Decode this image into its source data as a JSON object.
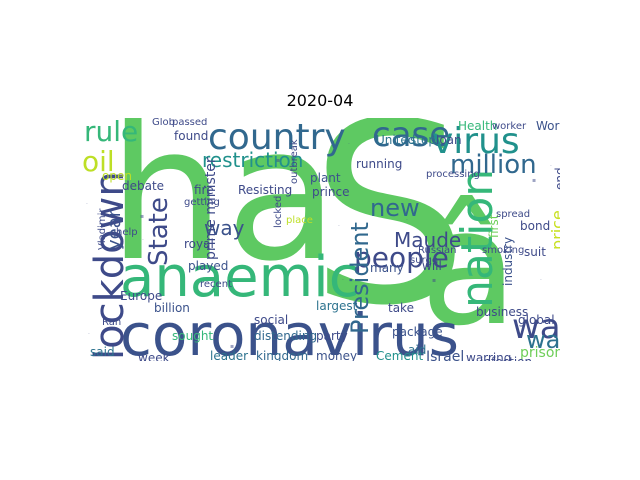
{
  "title": "2020-04",
  "words": [
    {
      "t": "ha",
      "c": "#5ec962"
    },
    {
      "t": "S",
      "c": "#5ec962"
    },
    {
      "t": "â",
      "c": "#5ec962"
    },
    {
      "t": "coronavirus",
      "c": "#3b528b"
    },
    {
      "t": "anaemic",
      "c": "#35b779"
    },
    {
      "t": "country",
      "c": "#31688e"
    },
    {
      "t": "lockdown",
      "c": "#3e4a89"
    },
    {
      "t": "case",
      "c": "#31688e"
    },
    {
      "t": "virus",
      "c": "#21918c"
    },
    {
      "t": "nation",
      "c": "#35b779"
    },
    {
      "t": "oil",
      "c": "#bddf26"
    },
    {
      "t": "wa",
      "c": "#3e4a89"
    },
    {
      "t": "rule",
      "c": "#35b779"
    },
    {
      "t": "million",
      "c": "#31688e"
    },
    {
      "t": "people",
      "c": "#3e4a89"
    },
    {
      "t": "new",
      "c": "#31688e"
    },
    {
      "t": "President",
      "c": "#31688e"
    },
    {
      "t": "State",
      "c": "#3e4a89"
    },
    {
      "t": "restriction",
      "c": "#21918c"
    },
    {
      "t": "way",
      "c": "#3b528b"
    },
    {
      "t": "Maude",
      "c": "#3e4a89"
    },
    {
      "t": "year",
      "c": "#3b528b"
    },
    {
      "t": "war",
      "c": "#2c728e"
    },
    {
      "t": "prime minister",
      "c": "#3e4a89"
    },
    {
      "t": "price",
      "c": "#c8e020"
    },
    {
      "t": "first",
      "c": "#6ece58"
    },
    {
      "t": "end",
      "c": "#3e4a89"
    },
    {
      "t": "prison",
      "c": "#6ece58"
    },
    {
      "t": "Israel",
      "c": "#3b528b"
    },
    {
      "t": "warring",
      "c": "#3e4a89"
    },
    {
      "t": "leader",
      "c": "#2c728e"
    },
    {
      "t": "kingdom",
      "c": "#31688e"
    },
    {
      "t": "money",
      "c": "#3b528b"
    },
    {
      "t": "Cement",
      "c": "#21918c"
    },
    {
      "t": "week",
      "c": "#3e4a89"
    },
    {
      "t": "said",
      "c": "#2c728e"
    },
    {
      "t": "sought",
      "c": "#35b779"
    },
    {
      "t": "billion",
      "c": "#3b528b"
    },
    {
      "t": "social",
      "c": "#3e4a89"
    },
    {
      "t": "largest",
      "c": "#2c728e"
    },
    {
      "t": "distending",
      "c": "#31688e"
    },
    {
      "t": "party",
      "c": "#3e4a89"
    },
    {
      "t": "package",
      "c": "#3b528b"
    },
    {
      "t": "business",
      "c": "#3e4a89"
    },
    {
      "t": "take",
      "c": "#3e4a89"
    },
    {
      "t": "global",
      "c": "#3e4a89"
    },
    {
      "t": "industry",
      "c": "#3b528b"
    },
    {
      "t": "infection",
      "c": "#3e4a89"
    },
    {
      "t": "aid",
      "c": "#2c728e"
    },
    {
      "t": "royal",
      "c": "#3e4a89"
    },
    {
      "t": "played",
      "c": "#3b528b"
    },
    {
      "t": "fire",
      "c": "#3e4a89"
    },
    {
      "t": "Resisting",
      "c": "#3e4a89"
    },
    {
      "t": "Europe",
      "c": "#3e4a89"
    },
    {
      "t": "debate",
      "c": "#3e4a89"
    },
    {
      "t": "open",
      "c": "#bddf26"
    },
    {
      "t": "Health",
      "c": "#35b779"
    },
    {
      "t": "World",
      "c": "#3b528b"
    },
    {
      "t": "worker",
      "c": "#3e4a89"
    },
    {
      "t": "United",
      "c": "#2c728e"
    },
    {
      "t": "step",
      "c": "#2c728e"
    },
    {
      "t": "loan",
      "c": "#3e4a89"
    },
    {
      "t": "running",
      "c": "#3e4a89"
    },
    {
      "t": "plant",
      "c": "#3b528b"
    },
    {
      "t": "prince",
      "c": "#3e4a89"
    },
    {
      "t": "Russian",
      "c": "#3e4a89"
    },
    {
      "t": "will",
      "c": "#3e4a89"
    },
    {
      "t": "bond",
      "c": "#3e4a89"
    },
    {
      "t": "suit",
      "c": "#3e4a89"
    },
    {
      "t": "many",
      "c": "#3b528b"
    },
    {
      "t": "processing",
      "c": "#3e4a89"
    },
    {
      "t": "found",
      "c": "#3e4a89"
    },
    {
      "t": "passed",
      "c": "#3e4a89"
    },
    {
      "t": "getting",
      "c": "#3e4a89"
    },
    {
      "t": "help",
      "c": "#3e4a89"
    },
    {
      "t": "recent",
      "c": "#3e4a89"
    },
    {
      "t": "Vladimir",
      "c": "#3e4a89"
    },
    {
      "t": "spread",
      "c": "#3e4a89"
    },
    {
      "t": "Glob",
      "c": "#3e4a89"
    },
    {
      "t": "place",
      "c": "#bddf26"
    },
    {
      "t": "locked",
      "c": "#3e4a89"
    },
    {
      "t": "surge",
      "c": "#3e4a89"
    },
    {
      "t": "smoking",
      "c": "#3e4a89"
    },
    {
      "t": "outbreak",
      "c": "#3e4a89"
    },
    {
      "t": "Ran",
      "c": "#3e4a89"
    }
  ]
}
